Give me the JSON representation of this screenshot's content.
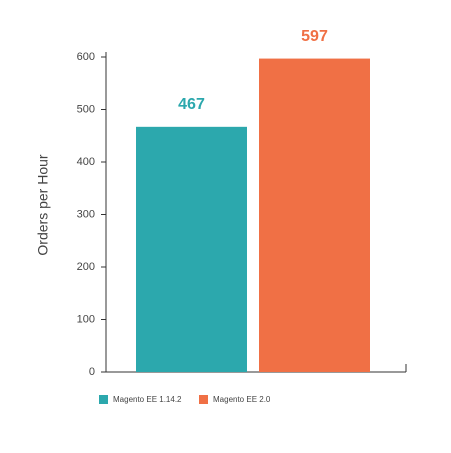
{
  "chart_data": {
    "type": "bar",
    "y_label": "Orders per Hour",
    "categories": [
      null
    ],
    "series": [
      {
        "name": "Magento EE 1.14.2",
        "color": "#2ca8ad",
        "values": [
          467
        ]
      },
      {
        "name": "Magento EE 2.0",
        "color": "#f07045",
        "values": [
          597
        ]
      }
    ],
    "ylim": [
      0,
      600
    ],
    "yticks": [
      0,
      100,
      200,
      300,
      400,
      500,
      600
    ],
    "grid": false
  }
}
